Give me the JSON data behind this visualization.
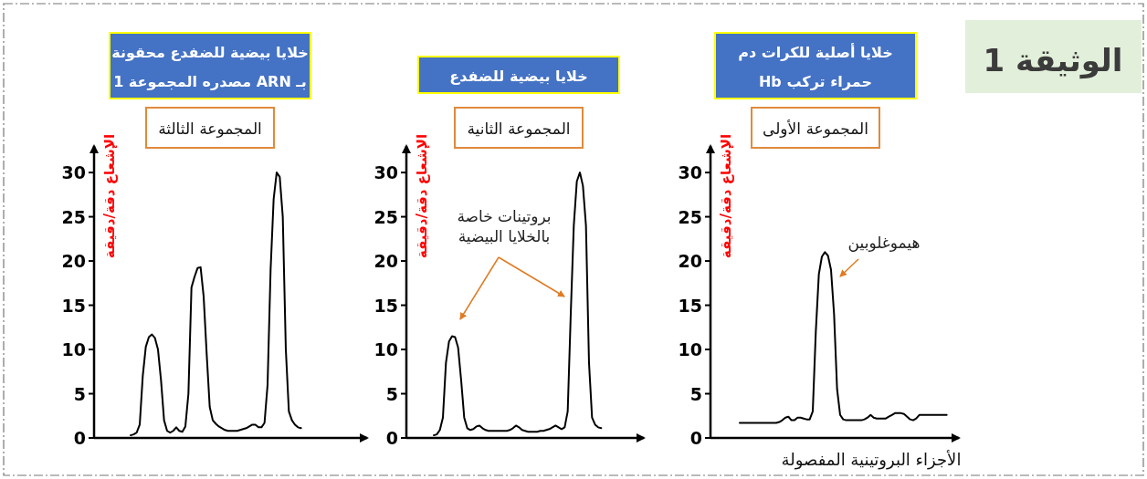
{
  "chart_data": [
    {
      "type": "line",
      "title": "خلايا أصلية للكرات دم\nحمراء تركب Hb",
      "subtitle": "المجموعة الأولى",
      "ylabel": "الإشعاع دقة/دقيقة",
      "xlabel": "الأجزاء البروتينية المفصولة",
      "annotations": [
        "هيموغلوبين",
        "الوثيقة 1"
      ],
      "categories": [
        null,
        null,
        null,
        null,
        null,
        null,
        null,
        null,
        null,
        null,
        null,
        null,
        null,
        null,
        null,
        null,
        null,
        null,
        null,
        null,
        null,
        null,
        null,
        null,
        null,
        null,
        null,
        null,
        null,
        null,
        null,
        null,
        null,
        null,
        null,
        null,
        null,
        null,
        null,
        null,
        null,
        null,
        null,
        null,
        null,
        null,
        null,
        null,
        null,
        null,
        null,
        null,
        null,
        null,
        null,
        null,
        null,
        null,
        null,
        null,
        null,
        null,
        null,
        null,
        null,
        null,
        null,
        null,
        null
      ],
      "series": [
        {
          "color": "#000000",
          "values": [
            1.7,
            1.7,
            1.7,
            1.7,
            1.7,
            1.7,
            1.7,
            1.7,
            1.7,
            1.7,
            1.7,
            1.7,
            1.7,
            1.8,
            2.0,
            2.3,
            2.4,
            2.0,
            2.0,
            2.3,
            2.3,
            2.2,
            2.1,
            2.1,
            3.0,
            12.0,
            18.5,
            20.5,
            21.0,
            20.6,
            19.0,
            14.0,
            5.5,
            2.6,
            2.1,
            2.0,
            2.0,
            2.0,
            2.0,
            2.0,
            2.0,
            2.1,
            2.3,
            2.6,
            2.3,
            2.2,
            2.2,
            2.2,
            2.2,
            2.4,
            2.6,
            2.8,
            2.8,
            2.8,
            2.7,
            2.4,
            2.1,
            2.0,
            2.2,
            2.6,
            2.6,
            2.6,
            2.6,
            2.6,
            2.6,
            2.6,
            2.6,
            2.6,
            2.6
          ]
        }
      ],
      "ylim": [
        0,
        33
      ],
      "yticks": [
        0,
        5,
        10,
        15,
        20,
        25,
        30
      ],
      "tick_labels": "y",
      "marker": "none",
      "line_style": "solid"
    },
    {
      "type": "line",
      "title": "خلايا بيضية للضفدع",
      "subtitle": "المجموعة الثانية",
      "ylabel": "الإشعاع دقة/دقيقة",
      "annotations": [
        "بروتينات خاصة\nبالخلايا البيضية"
      ],
      "categories": [
        null,
        null,
        null,
        null,
        null,
        null,
        null,
        null,
        null,
        null,
        null,
        null,
        null,
        null,
        null,
        null,
        null,
        null,
        null,
        null,
        null,
        null,
        null,
        null,
        null,
        null,
        null,
        null,
        null,
        null,
        null,
        null,
        null,
        null,
        null,
        null,
        null,
        null,
        null,
        null,
        null,
        null,
        null,
        null,
        null,
        null,
        null,
        null,
        null,
        null,
        null,
        null,
        null,
        null,
        null,
        null
      ],
      "series": [
        {
          "color": "#000000",
          "values": [
            0.3,
            0.4,
            0.9,
            2.3,
            8.5,
            10.9,
            11.5,
            11.4,
            10.2,
            6.5,
            2.3,
            1.1,
            0.9,
            1.0,
            1.3,
            1.4,
            1.1,
            0.9,
            0.8,
            0.8,
            0.8,
            0.8,
            0.8,
            0.8,
            0.8,
            0.9,
            1.1,
            1.4,
            1.2,
            0.9,
            0.8,
            0.7,
            0.7,
            0.7,
            0.7,
            0.8,
            0.8,
            0.9,
            1.0,
            1.2,
            1.4,
            1.2,
            1.0,
            1.2,
            3.0,
            14.0,
            24.0,
            29.0,
            30.0,
            28.5,
            24.0,
            8.5,
            2.3,
            1.5,
            1.2,
            1.1
          ]
        }
      ],
      "ylim": [
        0,
        33
      ],
      "yticks": [
        0,
        5,
        10,
        15,
        20,
        25,
        30
      ],
      "tick_labels": "y",
      "marker": "none",
      "line_style": "solid"
    },
    {
      "type": "line",
      "title": "خلايا بيضية للضفدع محقونة\nبـ ARN مصدره المجموعة 1",
      "subtitle": "المجموعة الثالثة",
      "ylabel": "الإشعاع دقة/دقيقة",
      "categories": [
        null,
        null,
        null,
        null,
        null,
        null,
        null,
        null,
        null,
        null,
        null,
        null,
        null,
        null,
        null,
        null,
        null,
        null,
        null,
        null,
        null,
        null,
        null,
        null,
        null,
        null,
        null,
        null,
        null,
        null,
        null,
        null,
        null,
        null,
        null,
        null,
        null,
        null,
        null,
        null,
        null,
        null,
        null,
        null,
        null,
        null,
        null,
        null,
        null,
        null,
        null,
        null,
        null,
        null,
        null,
        null,
        null
      ],
      "series": [
        {
          "color": "#000000",
          "values": [
            0.3,
            0.4,
            0.6,
            1.5,
            7.0,
            10.3,
            11.4,
            11.7,
            11.3,
            10.0,
            6.5,
            2.0,
            0.8,
            0.6,
            0.8,
            1.2,
            0.8,
            0.7,
            1.3,
            5.0,
            17.0,
            18.2,
            19.2,
            19.3,
            16.0,
            9.5,
            3.5,
            2.0,
            1.6,
            1.3,
            1.1,
            0.9,
            0.8,
            0.8,
            0.8,
            0.8,
            0.9,
            1.0,
            1.1,
            1.3,
            1.5,
            1.5,
            1.2,
            1.2,
            1.7,
            6.0,
            19.0,
            27.0,
            30.0,
            29.5,
            25.0,
            10.0,
            3.0,
            2.0,
            1.5,
            1.2,
            1.1
          ]
        }
      ],
      "ylim": [
        0,
        33
      ],
      "yticks": [
        0,
        5,
        10,
        15,
        20,
        25,
        30
      ],
      "tick_labels": "y",
      "marker": "none",
      "line_style": "solid"
    }
  ]
}
